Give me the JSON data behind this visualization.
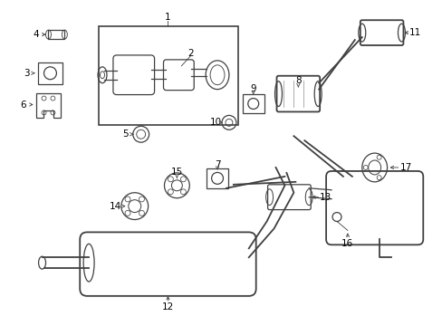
{
  "bg_color": "#ffffff",
  "line_color": "#404040",
  "label_color": "#000000",
  "figsize": [
    4.89,
    3.6
  ],
  "dpi": 100
}
